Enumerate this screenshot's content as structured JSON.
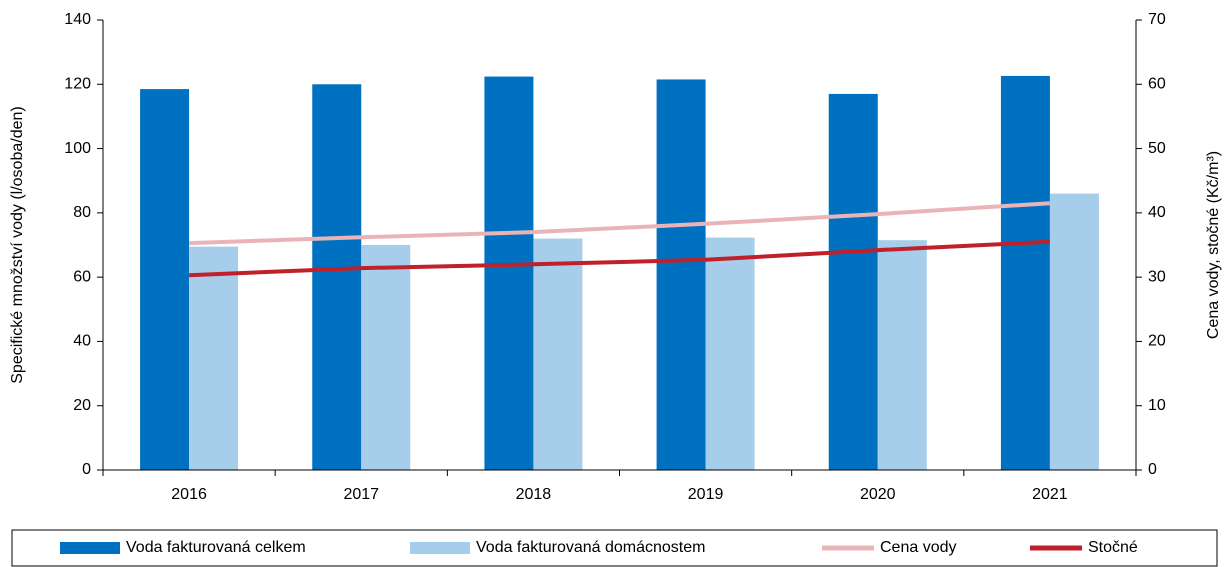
{
  "chart_data": {
    "type": "bar-line",
    "categories": [
      "2016",
      "2017",
      "2018",
      "2019",
      "2020",
      "2021"
    ],
    "series": [
      {
        "name": "Voda fakturovaná celkem",
        "type": "bar",
        "color": "#0070c0",
        "values": [
          118.5,
          120,
          122.4,
          121.5,
          117,
          122.6
        ]
      },
      {
        "name": "Voda fakturovaná domácnostem",
        "type": "bar",
        "color": "#a6cde9",
        "values": [
          69.5,
          70,
          72,
          72.3,
          71.5,
          86
        ]
      },
      {
        "name": "Cena vody",
        "type": "line",
        "axis": "y2",
        "color": "#e8b4b8",
        "values": [
          35.3,
          36.2,
          37.0,
          38.3,
          39.8,
          41.5
        ]
      },
      {
        "name": "Stočné",
        "type": "line",
        "axis": "y2",
        "color": "#c0202a",
        "values": [
          30.3,
          31.4,
          32.0,
          32.7,
          34.2,
          35.5
        ]
      }
    ],
    "ylabel": "Specifické množství vody (l/osoba/den)",
    "y2label": "Cena vody, stočné (Kč/m³)",
    "ylim": [
      0,
      140
    ],
    "yticks": [
      0,
      20,
      40,
      60,
      80,
      100,
      120,
      140
    ],
    "y2lim": [
      0,
      70
    ],
    "y2ticks": [
      0,
      10,
      20,
      30,
      40,
      50,
      60,
      70
    ],
    "legend": "bottom"
  }
}
